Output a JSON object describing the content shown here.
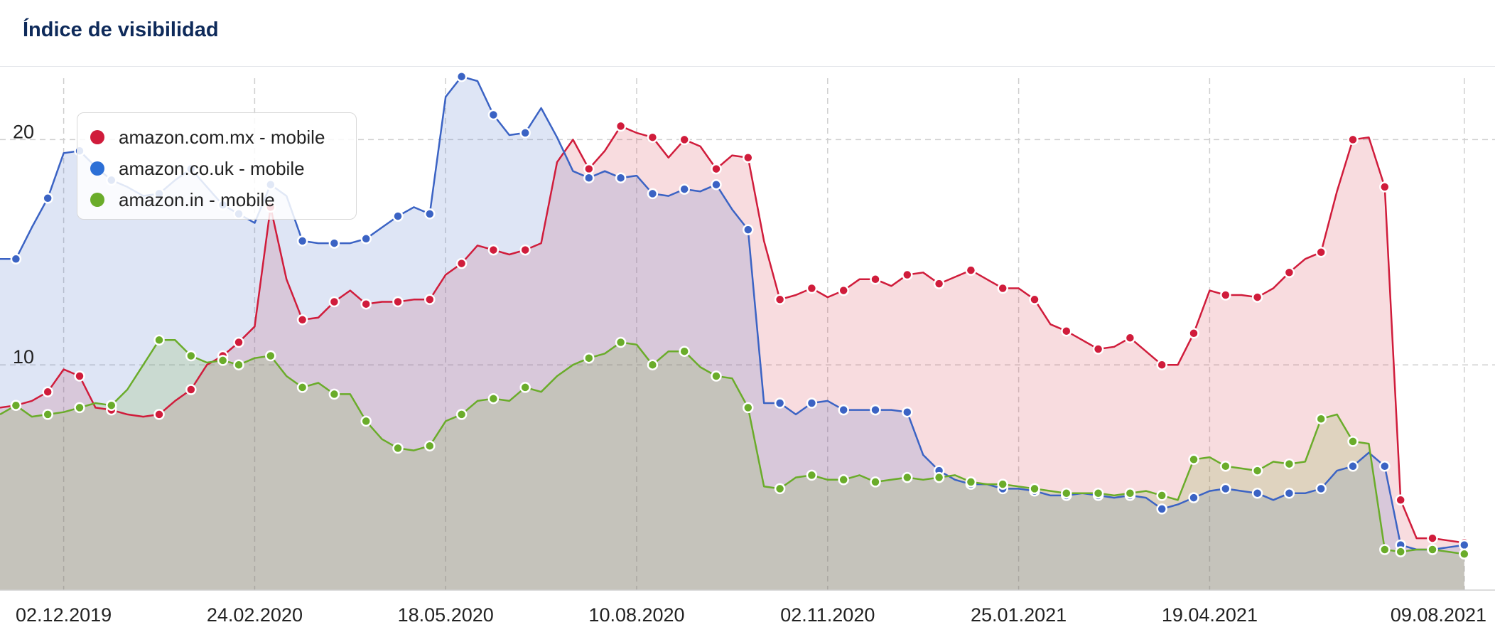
{
  "header": {
    "title": "Índice de visibilidad"
  },
  "chart_data": {
    "type": "area",
    "title": "Índice de visibilidad",
    "xlabel": "",
    "ylabel": "",
    "ylim": [
      0,
      23.2
    ],
    "yticks": [
      10,
      20
    ],
    "grid": true,
    "legend_position": "top-left",
    "x_tick_labels": [
      "02.12.2019",
      "24.02.2020",
      "18.05.2020",
      "10.08.2020",
      "02.11.2020",
      "25.01.2021",
      "19.04.2021",
      "09.08.2021"
    ],
    "x_tick_index": [
      4,
      16,
      28,
      40,
      52,
      64,
      76,
      92
    ],
    "series": [
      {
        "name": "amazon.com.mx - mobile",
        "color": "#d01c3b",
        "fill": "rgba(215,60,80,0.18)",
        "values": [
          8.1,
          8.2,
          8.4,
          8.8,
          9.8,
          9.5,
          8.1,
          8.0,
          7.8,
          7.7,
          7.8,
          8.4,
          8.9,
          10.0,
          10.4,
          11.0,
          11.7,
          17.0,
          13.8,
          12.0,
          12.1,
          12.8,
          13.3,
          12.7,
          12.8,
          12.8,
          12.9,
          12.9,
          14.0,
          14.5,
          15.3,
          15.1,
          14.9,
          15.1,
          15.4,
          19.0,
          20.0,
          18.7,
          19.5,
          20.6,
          20.3,
          20.1,
          19.2,
          20.0,
          19.7,
          18.7,
          19.3,
          19.2,
          15.5,
          12.9,
          13.1,
          13.4,
          13.0,
          13.3,
          13.8,
          13.8,
          13.5,
          14.0,
          14.1,
          13.6,
          13.9,
          14.2,
          13.8,
          13.4,
          13.4,
          12.9,
          11.8,
          11.5,
          11.1,
          10.7,
          10.8,
          11.2,
          10.6,
          10.0,
          10.0,
          11.4,
          13.3,
          13.1,
          13.1,
          13.0,
          13.4,
          14.1,
          14.7,
          15.0,
          17.7,
          20.0,
          20.1,
          17.9,
          4.0,
          2.3,
          2.3,
          2.2,
          2.1
        ],
        "markers": [
          1,
          3,
          5,
          7,
          10,
          12,
          14,
          15,
          17,
          19,
          21,
          23,
          25,
          27,
          29,
          31,
          33,
          37,
          39,
          41,
          43,
          45,
          47,
          49,
          51,
          53,
          55,
          57,
          59,
          61,
          63,
          65,
          67,
          69,
          71,
          73,
          75,
          77,
          79,
          81,
          83,
          85,
          87,
          88,
          90,
          92
        ]
      },
      {
        "name": "amazon.co.uk - mobile",
        "color": "#3b63c4",
        "fill": "rgba(70,110,200,0.18)",
        "values": [
          14.7,
          14.7,
          16.1,
          17.4,
          19.4,
          19.5,
          18.8,
          18.2,
          17.9,
          17.5,
          17.6,
          18.2,
          18.7,
          17.9,
          17.1,
          16.7,
          16.3,
          18.0,
          17.5,
          15.5,
          15.4,
          15.4,
          15.4,
          15.6,
          16.1,
          16.6,
          17.0,
          16.7,
          21.9,
          22.8,
          22.6,
          21.1,
          20.2,
          20.3,
          21.4,
          20.1,
          18.6,
          18.3,
          18.6,
          18.3,
          18.4,
          17.6,
          17.5,
          17.8,
          17.7,
          18.0,
          16.9,
          16.0,
          8.3,
          8.3,
          7.8,
          8.3,
          8.4,
          8.0,
          8.0,
          8.0,
          8.0,
          7.9,
          6.0,
          5.3,
          4.9,
          4.7,
          4.7,
          4.5,
          4.5,
          4.4,
          4.2,
          4.2,
          4.3,
          4.2,
          4.1,
          4.2,
          4.1,
          3.6,
          3.8,
          4.1,
          4.4,
          4.5,
          4.4,
          4.3,
          4.0,
          4.3,
          4.3,
          4.5,
          5.3,
          5.5,
          6.1,
          5.5,
          2.0,
          1.8,
          1.8,
          1.9,
          2.0
        ],
        "markers": [
          1,
          3,
          5,
          7,
          10,
          12,
          14,
          15,
          17,
          19,
          21,
          23,
          25,
          27,
          29,
          31,
          33,
          37,
          39,
          41,
          43,
          45,
          47,
          49,
          51,
          53,
          55,
          57,
          59,
          61,
          63,
          65,
          67,
          69,
          71,
          73,
          75,
          77,
          79,
          81,
          83,
          85,
          87,
          88,
          90,
          92
        ]
      },
      {
        "name": "amazon.in - mobile",
        "color": "#6aac2a",
        "fill": "rgba(110,170,50,0.18)",
        "values": [
          7.8,
          8.2,
          7.7,
          7.8,
          7.9,
          8.1,
          8.3,
          8.2,
          8.9,
          10.0,
          11.1,
          11.1,
          10.4,
          10.1,
          10.2,
          10.0,
          10.3,
          10.4,
          9.5,
          9.0,
          9.2,
          8.7,
          8.7,
          7.5,
          6.7,
          6.3,
          6.2,
          6.4,
          7.5,
          7.8,
          8.4,
          8.5,
          8.4,
          9.0,
          8.8,
          9.5,
          10.0,
          10.3,
          10.5,
          11.0,
          10.9,
          10.0,
          10.6,
          10.6,
          9.9,
          9.5,
          9.4,
          8.1,
          4.6,
          4.5,
          5.0,
          5.1,
          4.9,
          4.9,
          5.1,
          4.8,
          4.9,
          5.0,
          4.9,
          5.0,
          5.1,
          4.8,
          4.7,
          4.7,
          4.6,
          4.5,
          4.4,
          4.3,
          4.3,
          4.3,
          4.2,
          4.3,
          4.4,
          4.2,
          4.0,
          5.8,
          5.9,
          5.5,
          5.4,
          5.3,
          5.7,
          5.6,
          5.7,
          7.6,
          7.8,
          6.6,
          6.5,
          1.8,
          1.7,
          1.8,
          1.8,
          1.7,
          1.6
        ],
        "markers": [
          1,
          3,
          5,
          7,
          10,
          12,
          14,
          15,
          17,
          19,
          21,
          23,
          25,
          27,
          29,
          31,
          33,
          37,
          39,
          41,
          43,
          45,
          47,
          49,
          51,
          53,
          55,
          57,
          59,
          61,
          63,
          65,
          67,
          69,
          71,
          73,
          75,
          77,
          79,
          81,
          83,
          85,
          87,
          88,
          90,
          92
        ]
      }
    ]
  }
}
